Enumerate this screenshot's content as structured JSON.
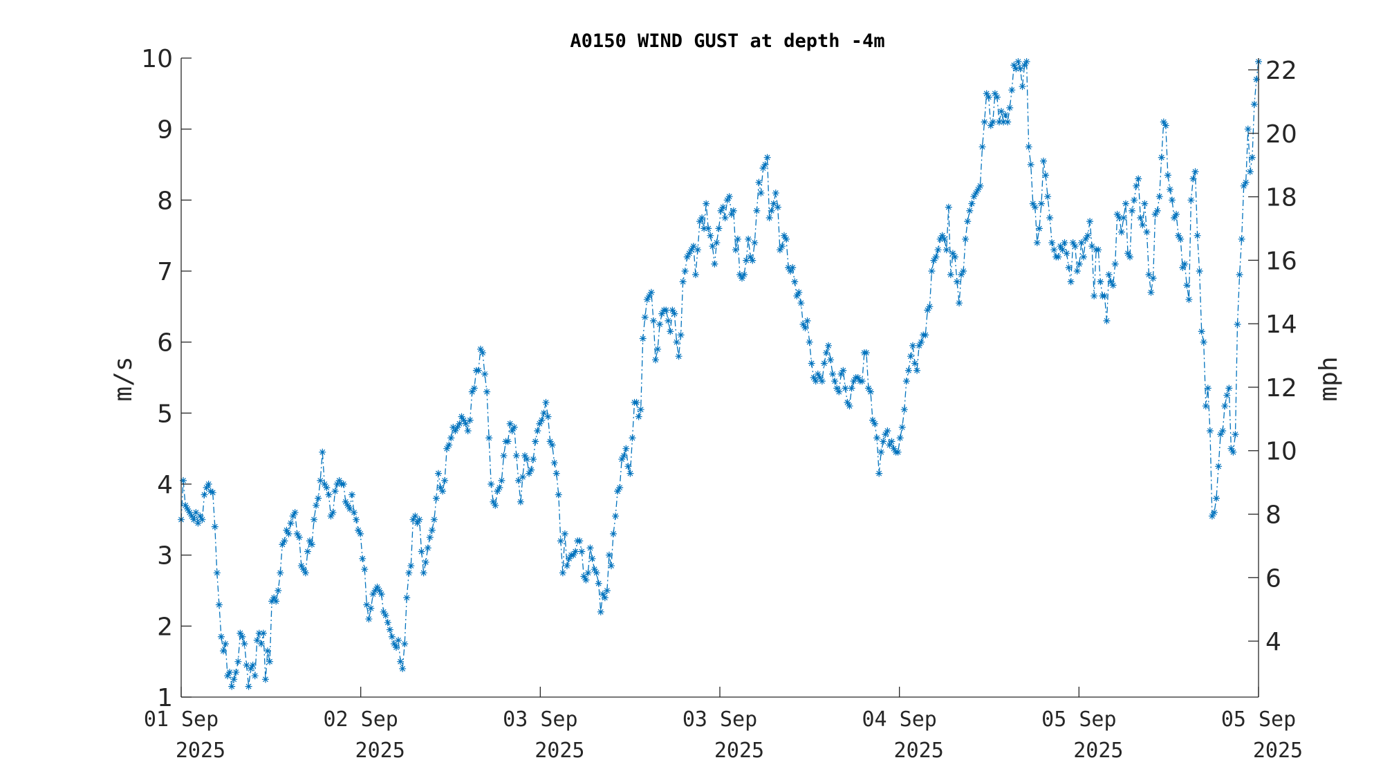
{
  "chart_data": {
    "type": "line",
    "title": "A0150 WIND GUST at depth -4m",
    "ylabel": "m/s",
    "ylabel_right": "mph",
    "ylim": [
      1,
      10
    ],
    "yticks": [
      1,
      2,
      3,
      4,
      5,
      6,
      7,
      8,
      9,
      10
    ],
    "ylim_right": [
      2.237,
      22.37
    ],
    "yticks_right": [
      4,
      6,
      8,
      10,
      12,
      14,
      16,
      18,
      20,
      22
    ],
    "x_ticks": [
      {
        "line1": "01 Sep",
        "line2": "2025"
      },
      {
        "line1": "02 Sep",
        "line2": "2025"
      },
      {
        "line1": "03 Sep",
        "line2": "2025"
      },
      {
        "line1": "03 Sep",
        "line2": "2025"
      },
      {
        "line1": "04 Sep",
        "line2": "2025"
      },
      {
        "line1": "05 Sep",
        "line2": "2025"
      },
      {
        "line1": "05 Sep",
        "line2": "2025"
      }
    ],
    "grid": false,
    "line_style": "dash-dot",
    "marker": "asterisk",
    "series": [
      {
        "color": "#0072BD",
        "x_range": [
          0,
          6
        ],
        "values": [
          3.5,
          4.05,
          3.7,
          3.65,
          3.6,
          3.55,
          3.5,
          3.6,
          3.45,
          3.55,
          3.5,
          3.85,
          3.95,
          4.0,
          3.9,
          3.88,
          3.4,
          2.75,
          2.3,
          1.85,
          1.65,
          1.75,
          1.3,
          1.35,
          1.15,
          1.25,
          1.35,
          1.5,
          1.9,
          1.85,
          1.75,
          1.45,
          1.15,
          1.4,
          1.45,
          1.3,
          1.8,
          1.9,
          1.75,
          1.9,
          1.25,
          1.65,
          1.5,
          2.35,
          2.4,
          2.35,
          2.5,
          2.75,
          3.15,
          3.2,
          3.35,
          3.3,
          3.45,
          3.55,
          3.6,
          3.3,
          3.25,
          2.85,
          2.8,
          2.75,
          3.05,
          3.2,
          3.15,
          3.5,
          3.7,
          3.8,
          4.05,
          4.45,
          4.0,
          3.95,
          3.85,
          3.55,
          3.6,
          3.9,
          4.0,
          4.05,
          4.0,
          4.0,
          3.75,
          3.7,
          3.65,
          3.85,
          3.6,
          3.5,
          3.35,
          3.3,
          2.95,
          2.8,
          2.3,
          2.1,
          2.25,
          2.45,
          2.5,
          2.55,
          2.5,
          2.45,
          2.2,
          2.15,
          2.05,
          1.95,
          1.85,
          1.75,
          1.7,
          1.8,
          1.5,
          1.4,
          1.75,
          2.4,
          2.75,
          2.85,
          3.5,
          3.55,
          3.45,
          3.5,
          3.05,
          2.75,
          2.9,
          3.1,
          3.25,
          3.35,
          3.5,
          3.8,
          4.15,
          3.95,
          3.9,
          4.05,
          4.5,
          4.55,
          4.65,
          4.8,
          4.75,
          4.8,
          4.85,
          4.95,
          4.9,
          4.85,
          4.75,
          4.9,
          5.3,
          5.35,
          5.6,
          5.6,
          5.9,
          5.85,
          5.55,
          5.3,
          4.65,
          4.0,
          3.75,
          3.7,
          3.9,
          3.95,
          4.05,
          4.4,
          4.6,
          4.6,
          4.85,
          4.75,
          4.8,
          4.4,
          4.05,
          3.75,
          4.1,
          4.4,
          4.35,
          4.15,
          4.2,
          4.35,
          4.6,
          4.75,
          4.85,
          4.9,
          5.0,
          5.15,
          4.95,
          4.6,
          4.55,
          4.3,
          4.15,
          3.85,
          3.2,
          2.75,
          3.3,
          2.85,
          2.95,
          3.0,
          3.0,
          3.05,
          3.2,
          3.2,
          3.05,
          2.7,
          2.65,
          2.75,
          3.1,
          2.95,
          2.8,
          2.75,
          2.6,
          2.2,
          2.45,
          2.4,
          2.5,
          3.0,
          2.85,
          3.3,
          3.55,
          3.9,
          3.95,
          4.35,
          4.4,
          4.5,
          4.25,
          4.15,
          4.65,
          5.15,
          5.15,
          4.95,
          5.05,
          6.05,
          6.35,
          6.6,
          6.65,
          6.7,
          6.3,
          5.75,
          5.9,
          6.25,
          6.4,
          6.45,
          6.45,
          6.3,
          6.15,
          6.45,
          6.4,
          6.0,
          5.8,
          6.1,
          6.85,
          7.0,
          7.2,
          7.25,
          7.3,
          7.35,
          6.95,
          7.3,
          7.7,
          7.75,
          7.6,
          7.95,
          7.6,
          7.5,
          7.35,
          7.1,
          7.4,
          7.6,
          7.85,
          7.9,
          7.75,
          8.0,
          8.05,
          7.8,
          7.85,
          7.3,
          7.45,
          6.95,
          6.9,
          6.95,
          7.15,
          7.45,
          7.2,
          7.15,
          7.4,
          7.85,
          8.25,
          8.1,
          8.45,
          8.5,
          8.6,
          7.75,
          7.85,
          7.95,
          8.1,
          7.9,
          7.3,
          7.35,
          7.5,
          7.45,
          7.05,
          7.0,
          7.05,
          6.85,
          6.65,
          6.7,
          6.55,
          6.25,
          6.2,
          6.3,
          6.0,
          5.7,
          5.5,
          5.45,
          5.55,
          5.5,
          5.45,
          5.7,
          5.85,
          5.95,
          5.75,
          5.55,
          5.45,
          5.35,
          5.3,
          5.55,
          5.6,
          5.35,
          5.15,
          5.1,
          5.35,
          5.45,
          5.5,
          5.5,
          5.45,
          5.45,
          5.85,
          5.85,
          5.35,
          5.3,
          4.9,
          4.85,
          4.65,
          4.15,
          4.45,
          4.6,
          4.7,
          4.75,
          4.55,
          4.6,
          4.5,
          4.45,
          4.45,
          4.65,
          4.8,
          5.05,
          5.45,
          5.6,
          5.8,
          5.95,
          5.7,
          5.6,
          5.95,
          6.0,
          6.1,
          6.1,
          6.45,
          6.5,
          7.0,
          7.15,
          7.2,
          7.3,
          7.45,
          7.5,
          7.45,
          7.3,
          7.9,
          6.95,
          7.25,
          7.2,
          6.85,
          6.55,
          6.95,
          7.0,
          7.45,
          7.7,
          7.85,
          7.95,
          8.05,
          8.1,
          8.15,
          8.2,
          8.75,
          9.1,
          9.5,
          9.45,
          9.05,
          9.1,
          9.5,
          9.45,
          9.1,
          9.25,
          9.1,
          9.2,
          9.1,
          9.3,
          9.55,
          9.9,
          9.85,
          9.95,
          9.85,
          9.6,
          9.9,
          9.95,
          8.75,
          8.5,
          7.95,
          7.9,
          7.4,
          7.6,
          7.95,
          8.55,
          8.35,
          8.05,
          7.75,
          7.4,
          7.3,
          7.2,
          7.2,
          7.35,
          7.3,
          7.4,
          7.25,
          7.05,
          6.85,
          7.4,
          7.35,
          7.0,
          7.1,
          7.4,
          7.2,
          7.45,
          7.5,
          7.7,
          7.35,
          6.65,
          7.3,
          7.3,
          6.85,
          6.65,
          6.65,
          6.3,
          6.95,
          6.85,
          6.8,
          7.1,
          7.8,
          7.75,
          7.55,
          7.75,
          7.95,
          7.25,
          7.2,
          7.85,
          8.0,
          8.2,
          8.3,
          7.75,
          7.65,
          7.95,
          7.55,
          6.95,
          6.7,
          6.9,
          7.8,
          7.85,
          8.05,
          8.6,
          9.1,
          9.05,
          8.35,
          8.15,
          8.0,
          7.75,
          7.8,
          7.5,
          7.45,
          7.05,
          7.1,
          6.8,
          6.6,
          8.0,
          8.3,
          8.4,
          7.5,
          7.0,
          6.15,
          6.0,
          5.1,
          5.35,
          4.75,
          3.55,
          3.6,
          3.8,
          4.25,
          4.7,
          4.75,
          5.1,
          5.25,
          5.35,
          4.5,
          4.45,
          4.7,
          6.25,
          6.95,
          7.45,
          8.2,
          8.25,
          9.0,
          8.4,
          8.6,
          9.35,
          9.7,
          9.95
        ]
      }
    ]
  }
}
